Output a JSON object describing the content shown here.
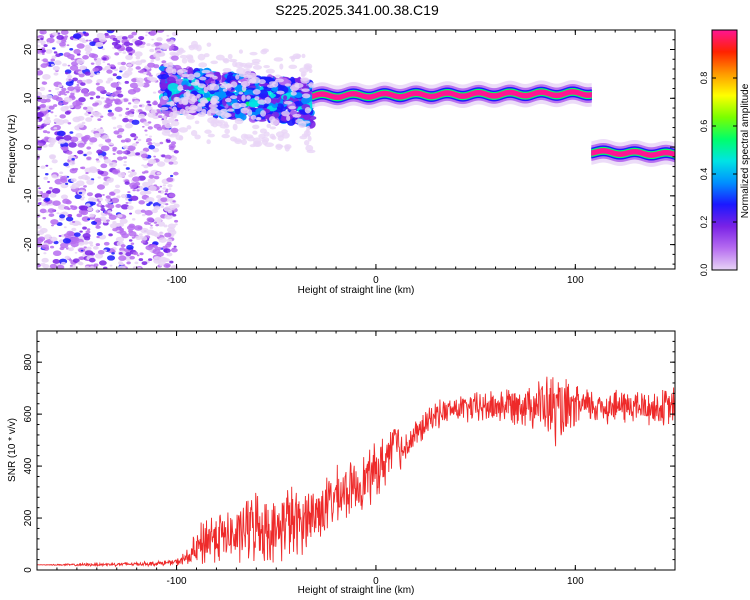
{
  "title": "S225.2025.341.00.38.C19",
  "chart_data": [
    {
      "type": "heatmap",
      "xlabel": "Height of straight line (km)",
      "ylabel": "Frequency (Hz)",
      "xlim": [
        -170,
        150
      ],
      "ylim": [
        -25,
        24
      ],
      "x_ticks": [
        -100,
        0,
        100
      ],
      "y_ticks": [
        -20,
        -10,
        0,
        10,
        20
      ],
      "colorbar": {
        "label": "Normalized spectral amplitude",
        "range": [
          0,
          1
        ],
        "ticks": [
          "0.0",
          "0.2",
          "0.4",
          "0.6",
          "0.8"
        ],
        "colormap": [
          "#e8d4f6",
          "#b66cf0",
          "#7a22e6",
          "#1b18ff",
          "#0090ff",
          "#00e4e4",
          "#00ff6a",
          "#7aff00",
          "#ffff00",
          "#ff9900",
          "#ff2200",
          "#ff1493"
        ]
      },
      "segments": [
        {
          "x": [
            -170,
            -100
          ],
          "freq_range": [
            -25,
            24
          ],
          "amplitude": 0.12
        },
        {
          "x": [
            -107,
            -32
          ],
          "freq_center": [
            12,
            9
          ],
          "amplitude": 0.35
        },
        {
          "x": [
            -32,
            108
          ],
          "freq_center": [
            10.5,
            11
          ],
          "amplitude": 0.9
        },
        {
          "x": [
            108,
            150
          ],
          "freq_center": [
            -1,
            -1.5
          ],
          "amplitude": 0.9
        }
      ]
    },
    {
      "type": "line",
      "xlabel": "Height of straight line (km)",
      "ylabel": "SNR (10 * v/v)",
      "xlim": [
        -170,
        150
      ],
      "ylim": [
        0,
        920
      ],
      "x_ticks": [
        -100,
        0,
        100
      ],
      "y_ticks": [
        0,
        200,
        400,
        600,
        800
      ],
      "series": [
        {
          "color": "#ee2a2a",
          "x": [
            -170,
            -150,
            -130,
            -110,
            -100,
            -95,
            -90,
            -85,
            -80,
            -75,
            -70,
            -65,
            -60,
            -55,
            -50,
            -45,
            -40,
            -35,
            -30,
            -25,
            -20,
            -15,
            -10,
            -5,
            0,
            5,
            8,
            10,
            12,
            15,
            20,
            25,
            30,
            40,
            50,
            60,
            70,
            80,
            85,
            90,
            95,
            100,
            110,
            120,
            130,
            140,
            150
          ],
          "values": [
            20,
            20,
            22,
            25,
            30,
            45,
            75,
            120,
            135,
            130,
            125,
            160,
            175,
            160,
            140,
            200,
            170,
            205,
            215,
            250,
            280,
            300,
            320,
            350,
            380,
            420,
            500,
            560,
            450,
            480,
            520,
            560,
            600,
            620,
            625,
            630,
            640,
            640,
            630,
            620,
            600,
            630,
            630,
            630,
            630,
            620,
            630
          ],
          "noise": [
            0,
            6,
            8,
            10,
            14,
            40,
            80,
            130,
            120,
            115,
            120,
            150,
            160,
            150,
            130,
            180,
            160,
            140,
            140,
            130,
            130,
            120,
            120,
            120,
            130,
            120,
            110,
            90,
            90,
            80,
            70,
            60,
            60,
            60,
            70,
            80,
            90,
            110,
            140,
            170,
            150,
            90,
            80,
            80,
            80,
            80,
            90
          ]
        }
      ]
    }
  ]
}
